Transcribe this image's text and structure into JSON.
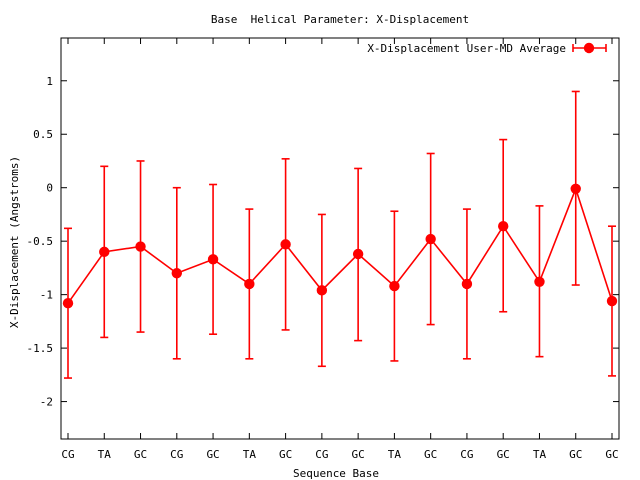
{
  "chart_data": {
    "type": "line",
    "title": "Base  Helical Parameter: X-Displacement",
    "xlabel": "Sequence Base",
    "ylabel": "X-Displacement (Angstroms)",
    "categories": [
      "CG",
      "TA",
      "GC",
      "CG",
      "GC",
      "TA",
      "GC",
      "CG",
      "GC",
      "TA",
      "GC",
      "CG",
      "GC",
      "TA",
      "GC",
      "GC"
    ],
    "ylim": [
      -2.35,
      1.4
    ],
    "yticks": [
      1,
      0.5,
      0,
      -0.5,
      -1,
      -1.5,
      -2
    ],
    "ytick_labels": [
      "1",
      "0.5",
      "0",
      "-0.5",
      "-1",
      "-1.5",
      "-2"
    ],
    "grid": false,
    "legend_position": "top-right",
    "series": [
      {
        "name": "X-Displacement User-MD Average",
        "color": "#ff0000",
        "values": [
          -1.08,
          -0.6,
          -0.55,
          -0.8,
          -0.67,
          -0.9,
          -0.53,
          -0.96,
          -0.62,
          -0.92,
          -0.48,
          -0.9,
          -0.36,
          -0.88,
          -0.01,
          -1.06
        ],
        "err_low": [
          -1.78,
          -1.4,
          -1.35,
          -1.6,
          -1.37,
          -1.6,
          -1.33,
          -1.67,
          -1.43,
          -1.62,
          -1.28,
          -1.6,
          -1.16,
          -1.58,
          -0.91,
          -1.76
        ],
        "err_high": [
          -0.38,
          0.2,
          0.25,
          0.0,
          0.03,
          -0.2,
          0.27,
          -0.25,
          0.18,
          -0.22,
          0.32,
          -0.2,
          0.45,
          -0.17,
          0.9,
          -0.36
        ]
      }
    ]
  }
}
